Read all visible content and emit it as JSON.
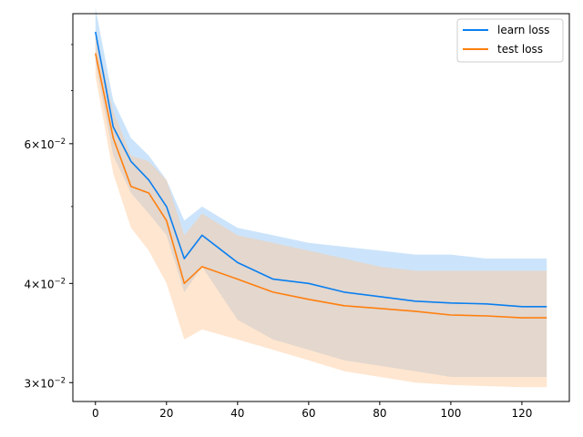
{
  "chart_data": {
    "type": "line",
    "title": "",
    "xlabel": "",
    "ylabel": "",
    "xlim": [
      -6.35,
      133.35
    ],
    "ylim": [
      0.0284,
      0.0875
    ],
    "yscale": "log",
    "grid": false,
    "legend_position": "top-right",
    "x_ticks": [
      0,
      20,
      40,
      60,
      80,
      100,
      120
    ],
    "x_tick_labels": [
      "0",
      "20",
      "40",
      "60",
      "80",
      "100",
      "120"
    ],
    "y_ticks": [
      0.03,
      0.04,
      0.06
    ],
    "y_tick_mantissas": [
      "3",
      "4",
      "6"
    ],
    "y_tick_base": "10",
    "y_tick_exponent": "−2",
    "series": [
      {
        "name": "learn loss",
        "color": "#1f77b4",
        "line_color": "#0a7ff0",
        "band_color": "#99c9f7",
        "x": [
          0,
          5,
          10,
          15,
          20,
          25,
          30,
          40,
          50,
          60,
          70,
          80,
          90,
          100,
          110,
          120,
          127
        ],
        "values": [
          0.083,
          0.063,
          0.057,
          0.054,
          0.05,
          0.043,
          0.046,
          0.0425,
          0.0405,
          0.04,
          0.039,
          0.0385,
          0.038,
          0.0378,
          0.0377,
          0.0374,
          0.0374
        ],
        "lower": [
          0.076,
          0.058,
          0.052,
          0.049,
          0.046,
          0.039,
          0.042,
          0.036,
          0.034,
          0.033,
          0.032,
          0.0315,
          0.031,
          0.0305,
          0.0305,
          0.0305,
          0.0305
        ],
        "upper": [
          0.089,
          0.068,
          0.061,
          0.058,
          0.054,
          0.048,
          0.05,
          0.047,
          0.046,
          0.045,
          0.0445,
          0.044,
          0.0435,
          0.0435,
          0.043,
          0.043,
          0.043
        ]
      },
      {
        "name": "test loss",
        "color": "#ff7f0e",
        "line_color": "#ff7f0e",
        "band_color": "#ffc896",
        "x": [
          0,
          5,
          10,
          15,
          20,
          25,
          30,
          40,
          50,
          60,
          70,
          80,
          90,
          100,
          110,
          120,
          127
        ],
        "values": [
          0.078,
          0.061,
          0.053,
          0.052,
          0.048,
          0.04,
          0.042,
          0.0405,
          0.039,
          0.0382,
          0.0375,
          0.0372,
          0.0369,
          0.0365,
          0.0364,
          0.0362,
          0.0362
        ],
        "lower": [
          0.073,
          0.055,
          0.047,
          0.044,
          0.04,
          0.034,
          0.035,
          0.034,
          0.033,
          0.032,
          0.031,
          0.0305,
          0.03,
          0.0298,
          0.0297,
          0.0296,
          0.0296
        ],
        "upper": [
          0.083,
          0.066,
          0.058,
          0.057,
          0.054,
          0.046,
          0.049,
          0.046,
          0.045,
          0.044,
          0.043,
          0.042,
          0.0415,
          0.0415,
          0.0415,
          0.0415,
          0.0415
        ]
      }
    ]
  }
}
